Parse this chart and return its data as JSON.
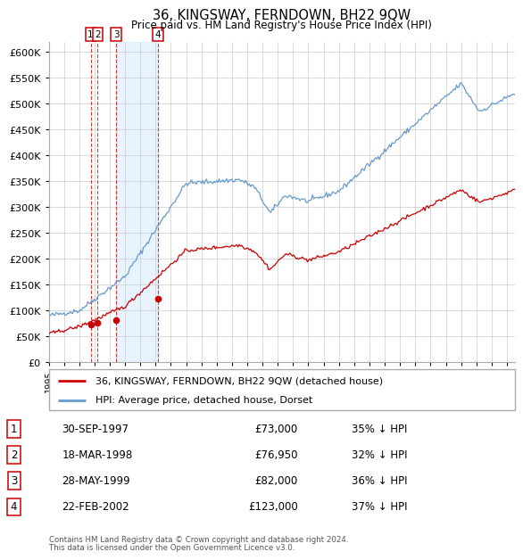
{
  "title": "36, KINGSWAY, FERNDOWN, BH22 9QW",
  "subtitle": "Price paid vs. HM Land Registry's House Price Index (HPI)",
  "footer1": "Contains HM Land Registry data © Crown copyright and database right 2024.",
  "footer2": "This data is licensed under the Open Government Licence v3.0.",
  "legend_red": "36, KINGSWAY, FERNDOWN, BH22 9QW (detached house)",
  "legend_blue": "HPI: Average price, detached house, Dorset",
  "transactions": [
    {
      "id": 1,
      "date": "30-SEP-1997",
      "price": 73000,
      "pct": "35%",
      "year": 1997.75
    },
    {
      "id": 2,
      "date": "18-MAR-1998",
      "price": 76950,
      "pct": "32%",
      "year": 1998.21
    },
    {
      "id": 3,
      "date": "28-MAY-1999",
      "price": 82000,
      "pct": "36%",
      "year": 1999.41
    },
    {
      "id": 4,
      "date": "22-FEB-2002",
      "price": 123000,
      "pct": "37%",
      "year": 2002.14
    }
  ],
  "ylim": [
    0,
    620000
  ],
  "xlim_start": 1995.0,
  "xlim_end": 2025.5,
  "background_color": "#ffffff",
  "grid_color": "#cccccc",
  "red_color": "#cc0000",
  "blue_color": "#6699cc",
  "shade_color": "#ddeeff",
  "label_box_color": "#cc0000",
  "yticks": [
    0,
    50000,
    100000,
    150000,
    200000,
    250000,
    300000,
    350000,
    400000,
    450000,
    500000,
    550000,
    600000
  ]
}
